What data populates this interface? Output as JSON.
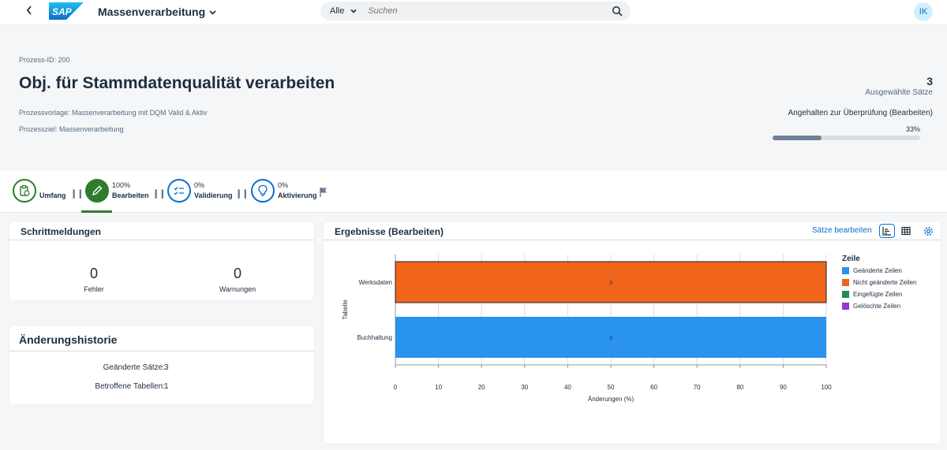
{
  "shell": {
    "app_title": "Massenverarbeitung",
    "search_scope": "Alle",
    "search_placeholder": "Suchen",
    "avatar_initials": "IK"
  },
  "header": {
    "process_id": "Prozess-ID: 200",
    "title": "Obj. für Stammdatenqualität verarbeiten",
    "template": "Prozessvorlage: Massenverarbeitung mit DQM Valid & Aktiv",
    "goal": "Prozessziel: Massenverarbeitung",
    "selected_count": "3",
    "selected_label": "Ausgewählte Sätze",
    "status": "Angehalten zur Überprüfung (Bearbeiten)",
    "progress_label": "33%",
    "progress_value": 0.33
  },
  "steps": [
    {
      "label": "Umfang",
      "pct": "",
      "state": "done",
      "icon": "clipboard-icon"
    },
    {
      "label": "Bearbeiten",
      "pct": "100%",
      "state": "active",
      "icon": "pencil-icon"
    },
    {
      "label": "Validierung",
      "pct": "0%",
      "state": "todo",
      "icon": "checklist-icon"
    },
    {
      "label": "Aktivierung",
      "pct": "0%",
      "state": "todo",
      "icon": "lightbulb-icon"
    }
  ],
  "step_messages": {
    "title": "Schrittmeldungen",
    "errors_value": "0",
    "errors_label": "Fehler",
    "warnings_value": "0",
    "warnings_label": "Warnungen"
  },
  "history": {
    "title": "Änderungshistorie",
    "rows": [
      {
        "label": "Geänderte Sätze:",
        "value": "3"
      },
      {
        "label": "Betroffene Tabellen:",
        "value": "1"
      }
    ]
  },
  "results": {
    "title": "Ergebnisse (Bearbeiten)",
    "edit_action": "Sätze bearbeiten"
  },
  "chart_data": {
    "type": "bar",
    "orientation": "horizontal",
    "categories": [
      "Werksdaten",
      "Buchhaltung"
    ],
    "series": [
      {
        "name": "Nicht geänderte Zeilen",
        "category": "Werksdaten",
        "value": 100,
        "label": "3",
        "color": "#f0641b"
      },
      {
        "name": "Geänderte Zeilen",
        "category": "Buchhaltung",
        "value": 100,
        "label": "3",
        "color": "#2a93ee"
      }
    ],
    "xlabel": "Änderungen (%)",
    "ylabel": "Tabelle",
    "xlim": [
      0,
      100
    ],
    "xticks": [
      "0",
      "10",
      "20",
      "30",
      "40",
      "50",
      "60",
      "70",
      "80",
      "90",
      "100"
    ],
    "grid": true,
    "legend_title": "Zeile",
    "legend_position": "right",
    "legend": [
      {
        "name": "Geänderte Zeilen",
        "color": "#2a93ee"
      },
      {
        "name": "Nicht geänderte Zeilen",
        "color": "#f0641b"
      },
      {
        "name": "Eingefügte Zeilen",
        "color": "#1d8b5a"
      },
      {
        "name": "Gelöschte Zeilen",
        "color": "#8b3fd4"
      }
    ]
  }
}
